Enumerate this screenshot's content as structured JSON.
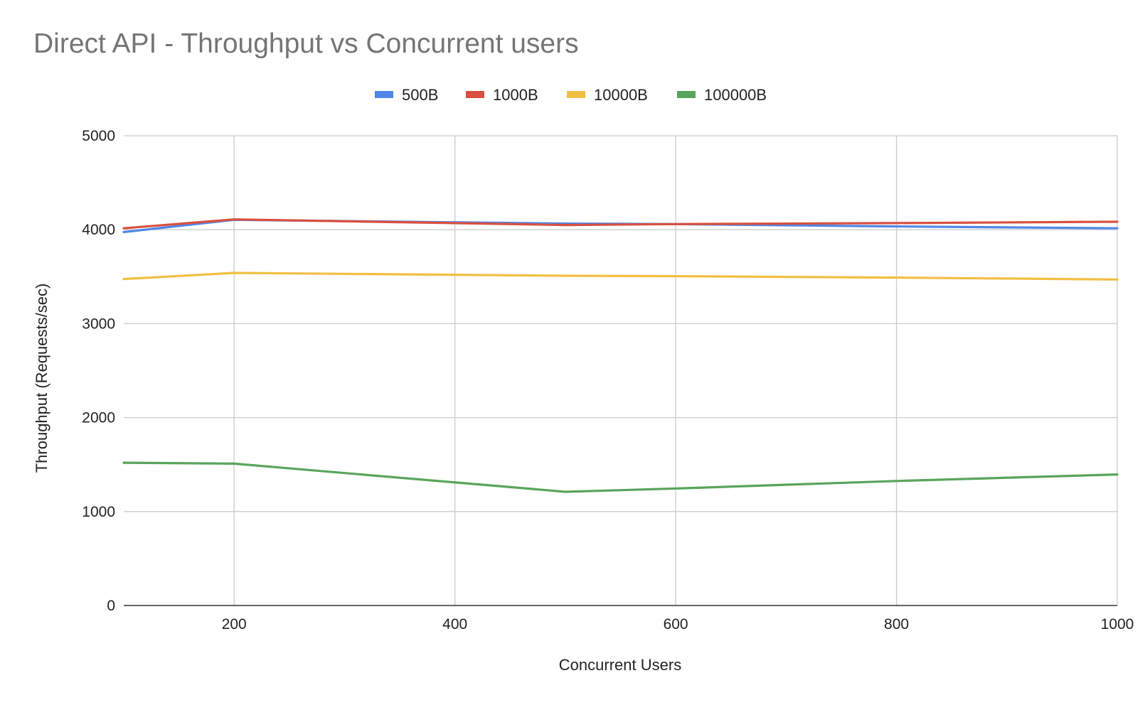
{
  "chart_data": {
    "type": "line",
    "title": "Direct API - Throughput vs Concurrent users",
    "xlabel": "Concurrent Users",
    "ylabel": "Throughput (Requests/sec)",
    "xlim": [
      100,
      1000
    ],
    "ylim": [
      0,
      5000
    ],
    "x_ticks": [
      200,
      400,
      600,
      800,
      1000
    ],
    "y_ticks": [
      0,
      1000,
      2000,
      3000,
      4000,
      5000
    ],
    "grid": true,
    "legend_position": "top",
    "x": [
      100,
      200,
      500,
      600,
      800,
      1000
    ],
    "series": [
      {
        "name": "500B",
        "color": "#5087e8",
        "values": [
          3975,
          4105,
          4065,
          4060,
          4035,
          4015
        ]
      },
      {
        "name": "1000B",
        "color": "#d9503f",
        "values": [
          4015,
          4110,
          4050,
          4060,
          4070,
          4085
        ]
      },
      {
        "name": "10000B",
        "color": "#f1bf42",
        "values": [
          3475,
          3540,
          3510,
          3505,
          3490,
          3470
        ]
      },
      {
        "name": "100000B",
        "color": "#58a55c",
        "values": [
          1520,
          1510,
          1210,
          1245,
          1325,
          1395
        ]
      }
    ]
  }
}
